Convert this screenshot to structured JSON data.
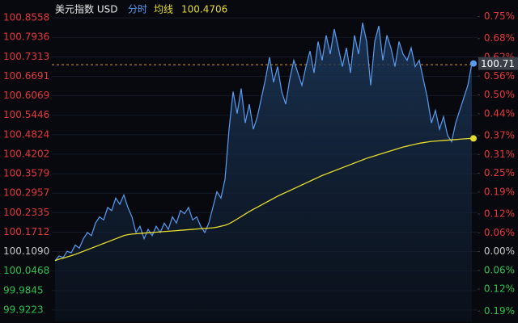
{
  "chart_data": {
    "type": "line",
    "title": "美元指数 USD",
    "base": 100.109,
    "up_color": "#e5383b",
    "down_color": "#2ec04f",
    "flat_color": "#c8c8c8",
    "grid": true,
    "reference_line": 100.706,
    "reference_color": "#e09a2a",
    "ylim": [
      99.886,
      100.887
    ],
    "yticks": [
      100.8558,
      100.7936,
      100.7313,
      100.6691,
      100.6069,
      100.5446,
      100.4824,
      100.4202,
      100.3579,
      100.2957,
      100.2335,
      100.1712,
      {
        "value": 100.109,
        "label": "100.1090"
      },
      100.0468,
      99.9845,
      99.9223
    ],
    "y2lim": [
      -0.2228,
      0.7772
    ],
    "y2ticks": [
      {
        "value": 0.75,
        "label": "0.75%"
      },
      {
        "value": 0.68,
        "label": "0.68%"
      },
      {
        "value": 0.62,
        "label": "0.62%"
      },
      {
        "value": 0.56,
        "label": "0.56%"
      },
      {
        "value": 0.5,
        "label": "0.50%"
      },
      {
        "value": 0.44,
        "label": "0.44%"
      },
      {
        "value": 0.37,
        "label": "0.37%"
      },
      {
        "value": 0.31,
        "label": "0.31%"
      },
      {
        "value": 0.25,
        "label": "0.25%"
      },
      {
        "value": 0.19,
        "label": "0.19%"
      },
      {
        "value": 0.12,
        "label": "0.12%"
      },
      {
        "value": 0.06,
        "label": "0.06%"
      },
      {
        "value": 0,
        "label": "0.00%"
      },
      {
        "value": -0.06,
        "label": "0.06%"
      },
      {
        "value": -0.12,
        "label": "0.12%"
      },
      {
        "value": -0.19,
        "label": "0.19%"
      }
    ],
    "series": [
      {
        "name": "分时",
        "color": "#5a9cf0",
        "values": [
          100.08,
          100.095,
          100.09,
          100.11,
          100.105,
          100.13,
          100.12,
          100.15,
          100.17,
          100.16,
          100.2,
          100.22,
          100.21,
          100.25,
          100.24,
          100.28,
          100.26,
          100.29,
          100.25,
          100.22,
          100.17,
          100.19,
          100.15,
          100.18,
          100.16,
          100.19,
          100.17,
          100.2,
          100.18,
          100.22,
          100.2,
          100.24,
          100.23,
          100.25,
          100.21,
          100.22,
          100.19,
          100.17,
          100.2,
          100.25,
          100.3,
          100.28,
          100.34,
          100.5,
          100.62,
          100.55,
          100.63,
          100.52,
          100.58,
          100.5,
          100.54,
          100.6,
          100.66,
          100.73,
          100.65,
          100.7,
          100.62,
          100.58,
          100.66,
          100.72,
          100.68,
          100.64,
          100.7,
          100.75,
          100.68,
          100.78,
          100.72,
          100.8,
          100.74,
          100.82,
          100.76,
          100.7,
          100.76,
          100.68,
          100.8,
          100.74,
          100.84,
          100.78,
          100.64,
          100.78,
          100.83,
          100.72,
          100.8,
          100.76,
          100.7,
          100.78,
          100.74,
          100.72,
          100.76,
          100.7,
          100.72,
          100.66,
          100.6,
          100.52,
          100.56,
          100.5,
          100.54,
          100.48,
          100.46,
          100.52,
          100.56,
          100.6,
          100.64,
          100.71
        ]
      },
      {
        "name": "均线",
        "color": "#e6dc2c",
        "values": [
          100.08,
          100.085,
          100.088,
          100.092,
          100.096,
          100.1,
          100.105,
          100.11,
          100.115,
          100.12,
          100.125,
          100.13,
          100.135,
          100.14,
          100.145,
          100.15,
          100.155,
          100.16,
          100.163,
          100.165,
          100.166,
          100.167,
          100.168,
          100.169,
          100.17,
          100.171,
          100.172,
          100.173,
          100.174,
          100.175,
          100.176,
          100.177,
          100.178,
          100.179,
          100.18,
          100.181,
          100.182,
          100.183,
          100.184,
          100.185,
          100.187,
          100.19,
          100.193,
          100.198,
          100.205,
          100.213,
          100.221,
          100.229,
          100.237,
          100.244,
          100.251,
          100.258,
          100.265,
          100.272,
          100.279,
          100.286,
          100.292,
          100.298,
          100.304,
          100.31,
          100.316,
          100.322,
          100.328,
          100.334,
          100.34,
          100.346,
          100.352,
          100.357,
          100.362,
          100.367,
          100.372,
          100.377,
          100.382,
          100.387,
          100.392,
          100.397,
          100.402,
          100.407,
          100.411,
          100.415,
          100.419,
          100.423,
          100.427,
          100.431,
          100.435,
          100.439,
          100.443,
          100.446,
          100.449,
          100.452,
          100.455,
          100.457,
          100.459,
          100.461,
          100.462,
          100.463,
          100.464,
          100.465,
          100.466,
          100.467,
          100.468,
          100.469,
          100.47,
          100.4706
        ]
      }
    ]
  }
}
